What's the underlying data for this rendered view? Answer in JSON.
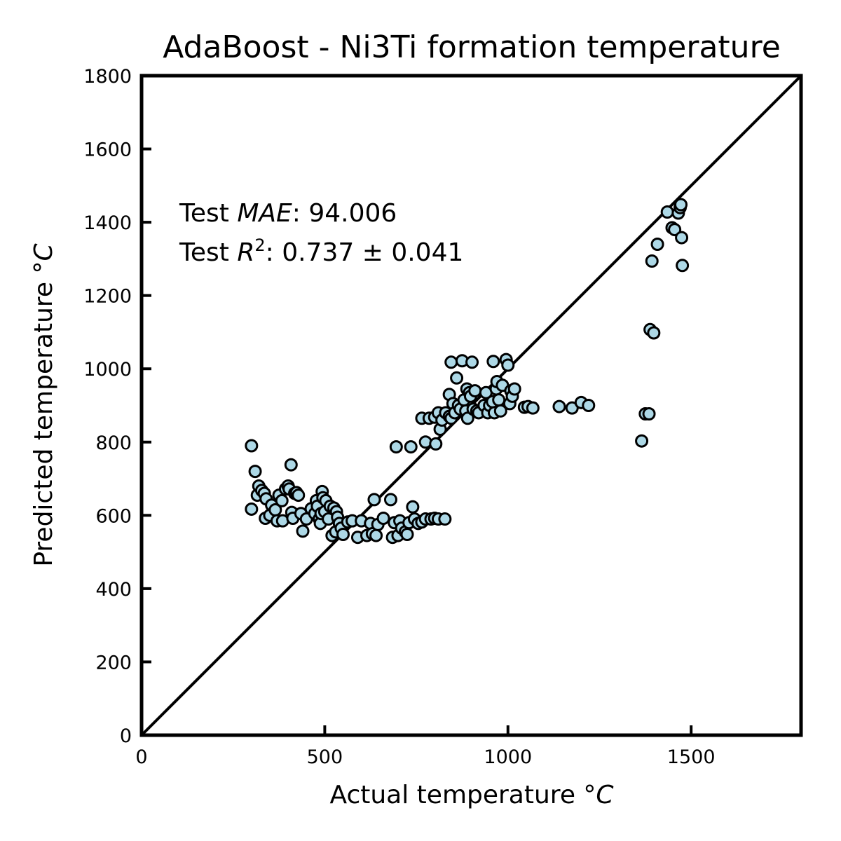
{
  "chart_data": {
    "type": "scatter",
    "title": "AdaBoost - Ni3Ti formation temperature",
    "xlabel": "Actual temperature °",
    "xlabel_unit": "C",
    "ylabel": "Predicted temperature °",
    "ylabel_unit": "C",
    "xlim": [
      0,
      1800
    ],
    "ylim": [
      0,
      1800
    ],
    "x_ticks": [
      0,
      500,
      1000,
      1500
    ],
    "y_ticks": [
      0,
      200,
      400,
      600,
      800,
      1000,
      1200,
      1400,
      1600,
      1800
    ],
    "grid": false,
    "reference_line": {
      "from": [
        0,
        0
      ],
      "to": [
        1800,
        1800
      ],
      "color": "#000000"
    },
    "marker": {
      "fill": "#add8e6",
      "edge": "#000000"
    },
    "annotations": {
      "mae_prefix": "Test ",
      "mae_var": "MAE",
      "mae_value": ": 94.006",
      "r2_prefix": "Test ",
      "r2_var": "R",
      "r2_sup": "2",
      "r2_value": ": 0.737 ± 0.041"
    },
    "points": [
      [
        300,
        790
      ],
      [
        300,
        617
      ],
      [
        310,
        720
      ],
      [
        316,
        655
      ],
      [
        320,
        680
      ],
      [
        328,
        668
      ],
      [
        335,
        660
      ],
      [
        340,
        645
      ],
      [
        338,
        592
      ],
      [
        350,
        600
      ],
      [
        355,
        628
      ],
      [
        365,
        615
      ],
      [
        370,
        585
      ],
      [
        375,
        655
      ],
      [
        383,
        640
      ],
      [
        385,
        585
      ],
      [
        393,
        672
      ],
      [
        400,
        680
      ],
      [
        403,
        672
      ],
      [
        408,
        738
      ],
      [
        410,
        608
      ],
      [
        413,
        592
      ],
      [
        418,
        660
      ],
      [
        423,
        662
      ],
      [
        428,
        655
      ],
      [
        435,
        605
      ],
      [
        440,
        557
      ],
      [
        450,
        590
      ],
      [
        463,
        618
      ],
      [
        473,
        605
      ],
      [
        477,
        640
      ],
      [
        480,
        625
      ],
      [
        485,
        590
      ],
      [
        488,
        578
      ],
      [
        490,
        605
      ],
      [
        493,
        665
      ],
      [
        495,
        648
      ],
      [
        500,
        610
      ],
      [
        503,
        640
      ],
      [
        510,
        590
      ],
      [
        515,
        625
      ],
      [
        520,
        545
      ],
      [
        525,
        620
      ],
      [
        530,
        555
      ],
      [
        532,
        610
      ],
      [
        535,
        595
      ],
      [
        540,
        578
      ],
      [
        545,
        565
      ],
      [
        550,
        548
      ],
      [
        563,
        582
      ],
      [
        575,
        585
      ],
      [
        590,
        540
      ],
      [
        600,
        585
      ],
      [
        615,
        545
      ],
      [
        625,
        578
      ],
      [
        630,
        550
      ],
      [
        640,
        545
      ],
      [
        635,
        643
      ],
      [
        645,
        575
      ],
      [
        660,
        592
      ],
      [
        680,
        643
      ],
      [
        685,
        540
      ],
      [
        690,
        580
      ],
      [
        700,
        545
      ],
      [
        705,
        585
      ],
      [
        710,
        565
      ],
      [
        720,
        555
      ],
      [
        725,
        548
      ],
      [
        730,
        580
      ],
      [
        740,
        623
      ],
      [
        745,
        590
      ],
      [
        755,
        578
      ],
      [
        765,
        582
      ],
      [
        775,
        590
      ],
      [
        790,
        590
      ],
      [
        800,
        592
      ],
      [
        810,
        590
      ],
      [
        828,
        590
      ],
      [
        695,
        787
      ],
      [
        735,
        787
      ],
      [
        775,
        800
      ],
      [
        803,
        795
      ],
      [
        765,
        865
      ],
      [
        785,
        865
      ],
      [
        800,
        868
      ],
      [
        810,
        880
      ],
      [
        815,
        835
      ],
      [
        820,
        860
      ],
      [
        830,
        880
      ],
      [
        840,
        870
      ],
      [
        845,
        865
      ],
      [
        840,
        930
      ],
      [
        850,
        905
      ],
      [
        845,
        1018
      ],
      [
        860,
        975
      ],
      [
        855,
        880
      ],
      [
        865,
        900
      ],
      [
        870,
        890
      ],
      [
        875,
        1022
      ],
      [
        880,
        915
      ],
      [
        885,
        885
      ],
      [
        888,
        945
      ],
      [
        890,
        865
      ],
      [
        895,
        935
      ],
      [
        898,
        925
      ],
      [
        902,
        1018
      ],
      [
        905,
        890
      ],
      [
        910,
        940
      ],
      [
        915,
        885
      ],
      [
        920,
        880
      ],
      [
        935,
        900
      ],
      [
        940,
        935
      ],
      [
        945,
        880
      ],
      [
        950,
        900
      ],
      [
        958,
        910
      ],
      [
        960,
        1020
      ],
      [
        963,
        880
      ],
      [
        968,
        945
      ],
      [
        970,
        965
      ],
      [
        975,
        915
      ],
      [
        980,
        885
      ],
      [
        985,
        955
      ],
      [
        995,
        1025
      ],
      [
        1000,
        1010
      ],
      [
        1005,
        905
      ],
      [
        1008,
        940
      ],
      [
        1012,
        925
      ],
      [
        1018,
        945
      ],
      [
        1045,
        895
      ],
      [
        1055,
        897
      ],
      [
        1068,
        893
      ],
      [
        1140,
        897
      ],
      [
        1175,
        893
      ],
      [
        1200,
        908
      ],
      [
        1220,
        900
      ],
      [
        1365,
        803
      ],
      [
        1375,
        877
      ],
      [
        1385,
        877
      ],
      [
        1388,
        1107
      ],
      [
        1398,
        1098
      ],
      [
        1393,
        1294
      ],
      [
        1408,
        1340
      ],
      [
        1435,
        1428
      ],
      [
        1448,
        1385
      ],
      [
        1455,
        1380
      ],
      [
        1465,
        1425
      ],
      [
        1470,
        1440
      ],
      [
        1472,
        1448
      ],
      [
        1474,
        1358
      ],
      [
        1476,
        1282
      ]
    ]
  }
}
